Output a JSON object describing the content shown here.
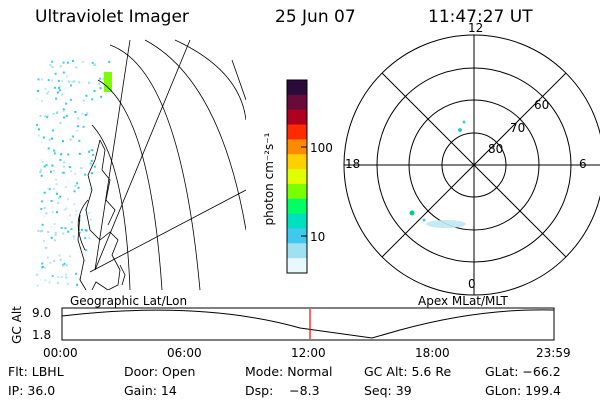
{
  "header": {
    "instrument": "Ultraviolet Imager",
    "date": "25 Jun 07",
    "time": "11:47:27 UT"
  },
  "geo_panel": {
    "label": "Geographic Lat/Lon"
  },
  "colorbar": {
    "unit_label": "photon cm⁻²s⁻¹",
    "ticks": [
      "100",
      "10"
    ],
    "scale": "log",
    "colors": [
      "#2a0a3a",
      "#6a0a3a",
      "#b00020",
      "#ff2a00",
      "#ff8a00",
      "#ffd000",
      "#e0ff00",
      "#7aff00",
      "#00ff66",
      "#00e0c0",
      "#40c8f0",
      "#a0e0f0",
      "#e8f8fb"
    ]
  },
  "polar_panel": {
    "label": "Apex MLat/MLT",
    "mlt_labels": [
      "12",
      "18",
      "6",
      "0"
    ],
    "mlat_labels": [
      "60",
      "70",
      "80"
    ]
  },
  "altitude_plot": {
    "ylabel": "GC Alt",
    "yticks": [
      "9.0",
      "1.8"
    ],
    "xticks": [
      "00:00",
      "06:00",
      "12:00",
      "18:00",
      "23:59"
    ],
    "current_time_color": "#ff0000"
  },
  "info": {
    "flt": "Flt: LBHL",
    "door": "Door: Open",
    "mode": "Mode: Normal",
    "gcalt": "GC Alt: 5.6 Re",
    "glat": "GLat: −66.2",
    "ip": "IP: 36.0",
    "gain": "Gain: 14",
    "dsp": "Dsp:    −8.3",
    "seq": "Seq: 39",
    "glon": "GLon: 199.4"
  }
}
